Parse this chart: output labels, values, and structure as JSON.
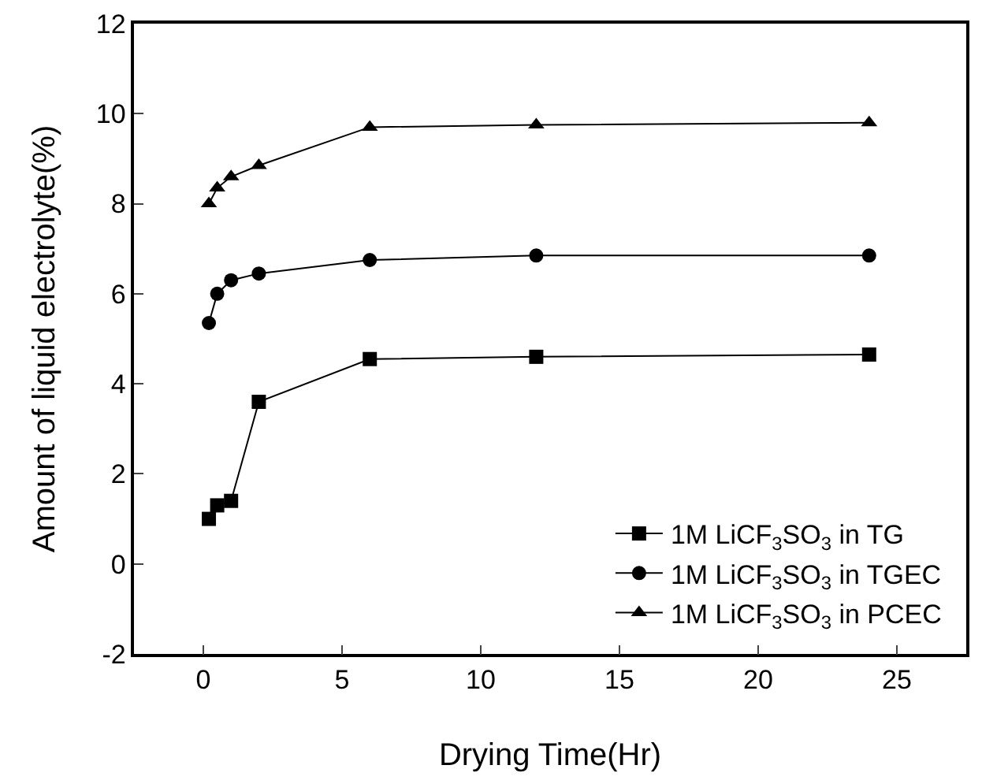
{
  "chart_data": {
    "type": "line",
    "xlabel": "Drying Time(Hr)",
    "ylabel": "Amount of liquid electrolyte(%)",
    "x": [
      0.2,
      0.5,
      1,
      2,
      6,
      12,
      24
    ],
    "xlim": [
      -2.5,
      27.5
    ],
    "xticks": [
      0,
      5,
      10,
      15,
      20,
      25
    ],
    "ylim": [
      -2,
      12
    ],
    "yticks": [
      -2,
      0,
      2,
      4,
      6,
      8,
      10,
      12
    ],
    "grid": false,
    "legend": "bottom right",
    "line_style": "solid",
    "series": [
      {
        "name": "1M LiCF$_{3}$SO$_{3}$ in TG",
        "color": "#000000",
        "marker": "square",
        "values": [
          1.0,
          1.3,
          1.4,
          3.6,
          4.55,
          4.6,
          4.65
        ]
      },
      {
        "name": "1M LiCF$_{3}$SO$_{3}$ in TGEC",
        "color": "#000000",
        "marker": "circle",
        "values": [
          5.35,
          6.0,
          6.3,
          6.45,
          6.75,
          6.85,
          6.85
        ]
      },
      {
        "name": "1M LiCF$_{3}$SO$_{3}$ in PCEC",
        "color": "#000000",
        "marker": "triangle",
        "values": [
          8.0,
          8.35,
          8.6,
          8.85,
          9.7,
          9.75,
          9.8
        ]
      }
    ]
  }
}
